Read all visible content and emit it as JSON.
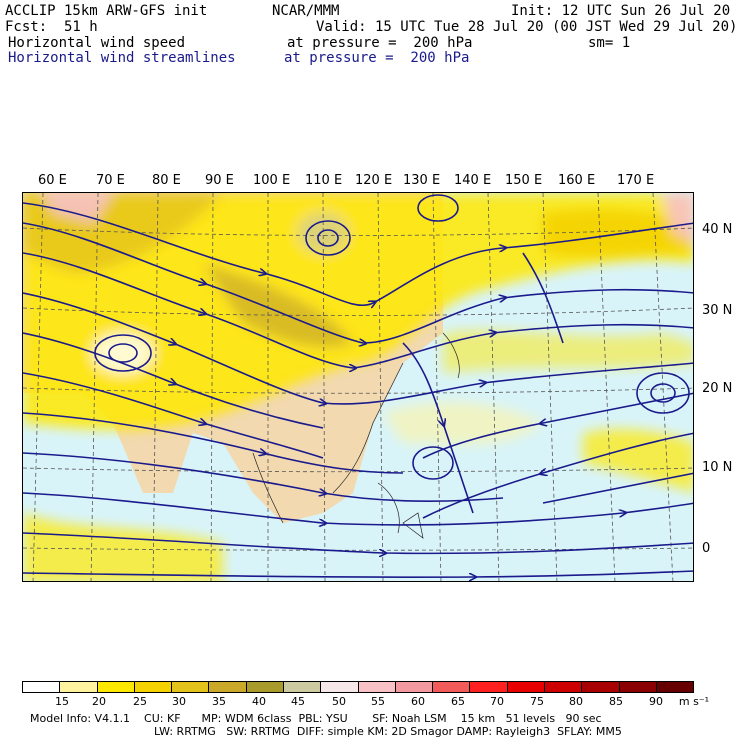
{
  "header": {
    "model": "ACCLIP 15km ARW-GFS init",
    "org": "NCAR/MMM",
    "init": "Init: 12 UTC Sun 26 Jul 20",
    "fcst_label": "Fcst:",
    "fcst_value": "51 h",
    "valid": "Valid: 15 UTC Tue 28 Jul 20 (00 JST Wed 29 Jul 20)",
    "field1_name": "Horizontal wind speed",
    "field1_level": "at pressure =  200 hPa",
    "field1_sm": "sm= 1",
    "field2_name": "Horizontal wind streamlines",
    "field2_level": "at pressure =  200 hPa"
  },
  "map": {
    "lon_labels": [
      "60 E",
      "70 E",
      "80 E",
      "90 E",
      "100 E",
      "110 E",
      "120 E",
      "130 E",
      "140 E",
      "150 E",
      "160 E",
      "170 E"
    ],
    "lat_labels": [
      "40 N",
      "30 N",
      "20 N",
      "10 N",
      "0"
    ],
    "colors": {
      "frame": "#000000",
      "streamline": "#1a1a8c",
      "land": "#f2d9b0",
      "ocean_calm": "#d9f4f9"
    }
  },
  "colorbar": {
    "labels": [
      "15",
      "20",
      "25",
      "30",
      "35",
      "40",
      "45",
      "50",
      "55",
      "60",
      "65",
      "70",
      "75",
      "80",
      "85",
      "90"
    ],
    "unit": "m s⁻¹",
    "colors": [
      "#ffffff",
      "#fff3a0",
      "#ffe800",
      "#f4d200",
      "#e3c21b",
      "#c9a82a",
      "#a99a2c",
      "#cdc9a0",
      "#f6e8e8",
      "#f7c1c6",
      "#f39aa0",
      "#f35a5a",
      "#ff2020",
      "#e80000",
      "#cc0000",
      "#a80000",
      "#8a0000",
      "#660000"
    ]
  },
  "footer": {
    "line1": "Model Info: V4.1.1    CU: KF      MP: WDM 6class  PBL: YSU       SF: Noah LSM    15 km   51 levels   90 sec",
    "line2": "LW: RRTMG   SW: RRTMG  DIFF: simple KM: 2D Smagor DAMP: Rayleigh3  SFLAY: MM5"
  }
}
